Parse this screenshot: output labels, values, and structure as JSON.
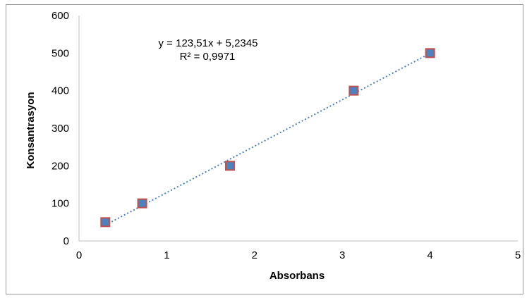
{
  "chart_data": {
    "type": "scatter",
    "xlabel": "Absorbans",
    "ylabel": "Konsantrasyon",
    "xlim": [
      0,
      5
    ],
    "ylim": [
      0,
      600
    ],
    "xticks": [
      0,
      1,
      2,
      3,
      4,
      5
    ],
    "yticks": [
      0,
      100,
      200,
      300,
      400,
      500,
      600
    ],
    "grid": false,
    "series": [
      {
        "x": [
          0.3,
          0.72,
          1.72,
          3.13,
          4.0
        ],
        "y": [
          50,
          100,
          200,
          400,
          500
        ],
        "marker": "square",
        "marker_fill": "#4f81bd",
        "marker_edge": "#c0504d"
      }
    ],
    "trendline": {
      "type": "linear",
      "style": "dotted",
      "color": "#4f81bd",
      "slope": 123.51,
      "intercept": 5.2345,
      "x_range": [
        0.3,
        4.0
      ],
      "equation": "y = 123,51x + 5,2345",
      "r2": "R² = 0,9971"
    }
  }
}
